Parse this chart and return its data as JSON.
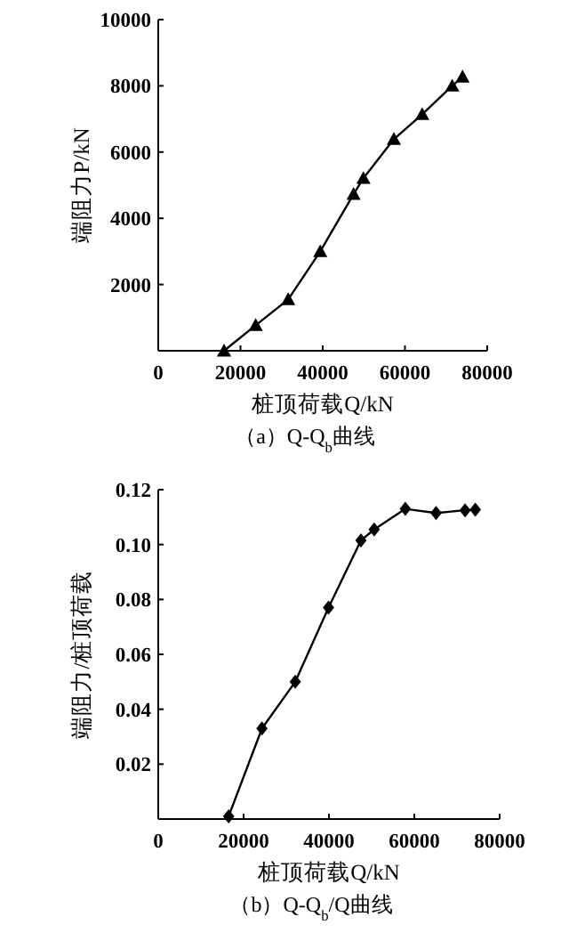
{
  "chart_data": [
    {
      "type": "line",
      "title": "（a）Q-Q$_{b}$曲线",
      "xlabel": "桩顶荷载Q/kN",
      "ylabel": "端阻力P/kN",
      "marker": "triangle",
      "line_style": "solid",
      "xlim": [
        0,
        80000
      ],
      "xticks": [
        0,
        20000,
        40000,
        60000,
        80000
      ],
      "ylim": [
        0,
        10000
      ],
      "yticks": [
        {
          "value": 0,
          "label": null
        },
        2000,
        4000,
        6000,
        8000,
        10000
      ],
      "series": [
        {
          "color": "#000000",
          "x": [
            16000,
            23700,
            31600,
            39400,
            47500,
            49900,
            57300,
            64200,
            71500,
            74000
          ],
          "values": [
            0,
            770,
            1550,
            3000,
            4730,
            5210,
            6390,
            7140,
            8000,
            8270
          ]
        }
      ]
    },
    {
      "type": "line",
      "title": "（b）Q-Q$_{b}$/Q曲线",
      "xlabel": "桩顶荷载Q/kN",
      "ylabel": "端阻力/桩顶荷载",
      "marker": "diamond",
      "line_style": "solid",
      "xlim": [
        0,
        80000
      ],
      "xticks": [
        0,
        20000,
        40000,
        60000,
        80000
      ],
      "ylim": [
        0,
        0.12
      ],
      "yticks": [
        {
          "value": 0,
          "label": null
        },
        {
          "value": 0.02,
          "label": "0.02"
        },
        {
          "value": 0.04,
          "label": "0.04"
        },
        {
          "value": 0.06,
          "label": "0.06"
        },
        {
          "value": 0.08,
          "label": "0.08"
        },
        {
          "value": 0.1,
          "label": "0.10"
        },
        {
          "value": 0.12,
          "label": "0.12"
        }
      ],
      "series": [
        {
          "color": "#000000",
          "x": [
            16500,
            24300,
            32100,
            39900,
            47500,
            50600,
            57900,
            65100,
            71900,
            74300
          ],
          "values": [
            0.001,
            0.033,
            0.05,
            0.077,
            0.1015,
            0.1055,
            0.113,
            0.1115,
            0.1125,
            0.1127
          ]
        }
      ]
    }
  ]
}
